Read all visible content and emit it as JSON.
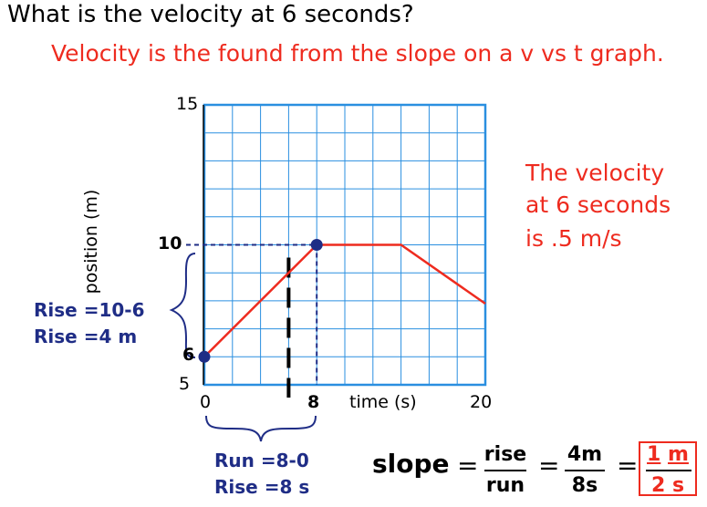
{
  "question": "What is the velocity at 6 seconds?",
  "hint": "Velocity is the found from the slope on a v vs t graph.",
  "answer_lines": [
    "The velocity",
    "at 6 seconds",
    "is .5 m/s"
  ],
  "chart_data": {
    "type": "line",
    "ylabel": "position (m)",
    "xlabel": "time (s)",
    "xlim": [
      0,
      20
    ],
    "ylim": [
      5,
      15
    ],
    "y_tick_labels": [
      "15",
      "5"
    ],
    "x_tick_labels": [
      "0",
      "20"
    ],
    "series": [
      {
        "x": [
          0,
          8,
          14,
          20
        ],
        "y": [
          6,
          10,
          10,
          7.9
        ],
        "color": "#ee2b1f"
      }
    ],
    "markers": [
      {
        "x": 0,
        "y": 6,
        "label": "6"
      },
      {
        "x": 8,
        "y": 10,
        "label": "10"
      }
    ],
    "x_marker_label": "8",
    "vertical_dashed_at_x": 6,
    "grid": true
  },
  "rise_text": [
    "Rise =10-6",
    "Rise =4 m"
  ],
  "run_text": [
    "Run =8-0",
    "Rise =8 s"
  ],
  "formula": {
    "slope_label": "slope",
    "eq": "=",
    "f1_num": "rise",
    "f1_den": "run",
    "f2_num": "4m",
    "f2_den": "8s",
    "f3_num": "1 m",
    "f3_den": "2 s",
    "f3_num_n": "1",
    "f3_num_u": "m",
    "f3_den_n": "2",
    "f3_den_u": "s"
  }
}
